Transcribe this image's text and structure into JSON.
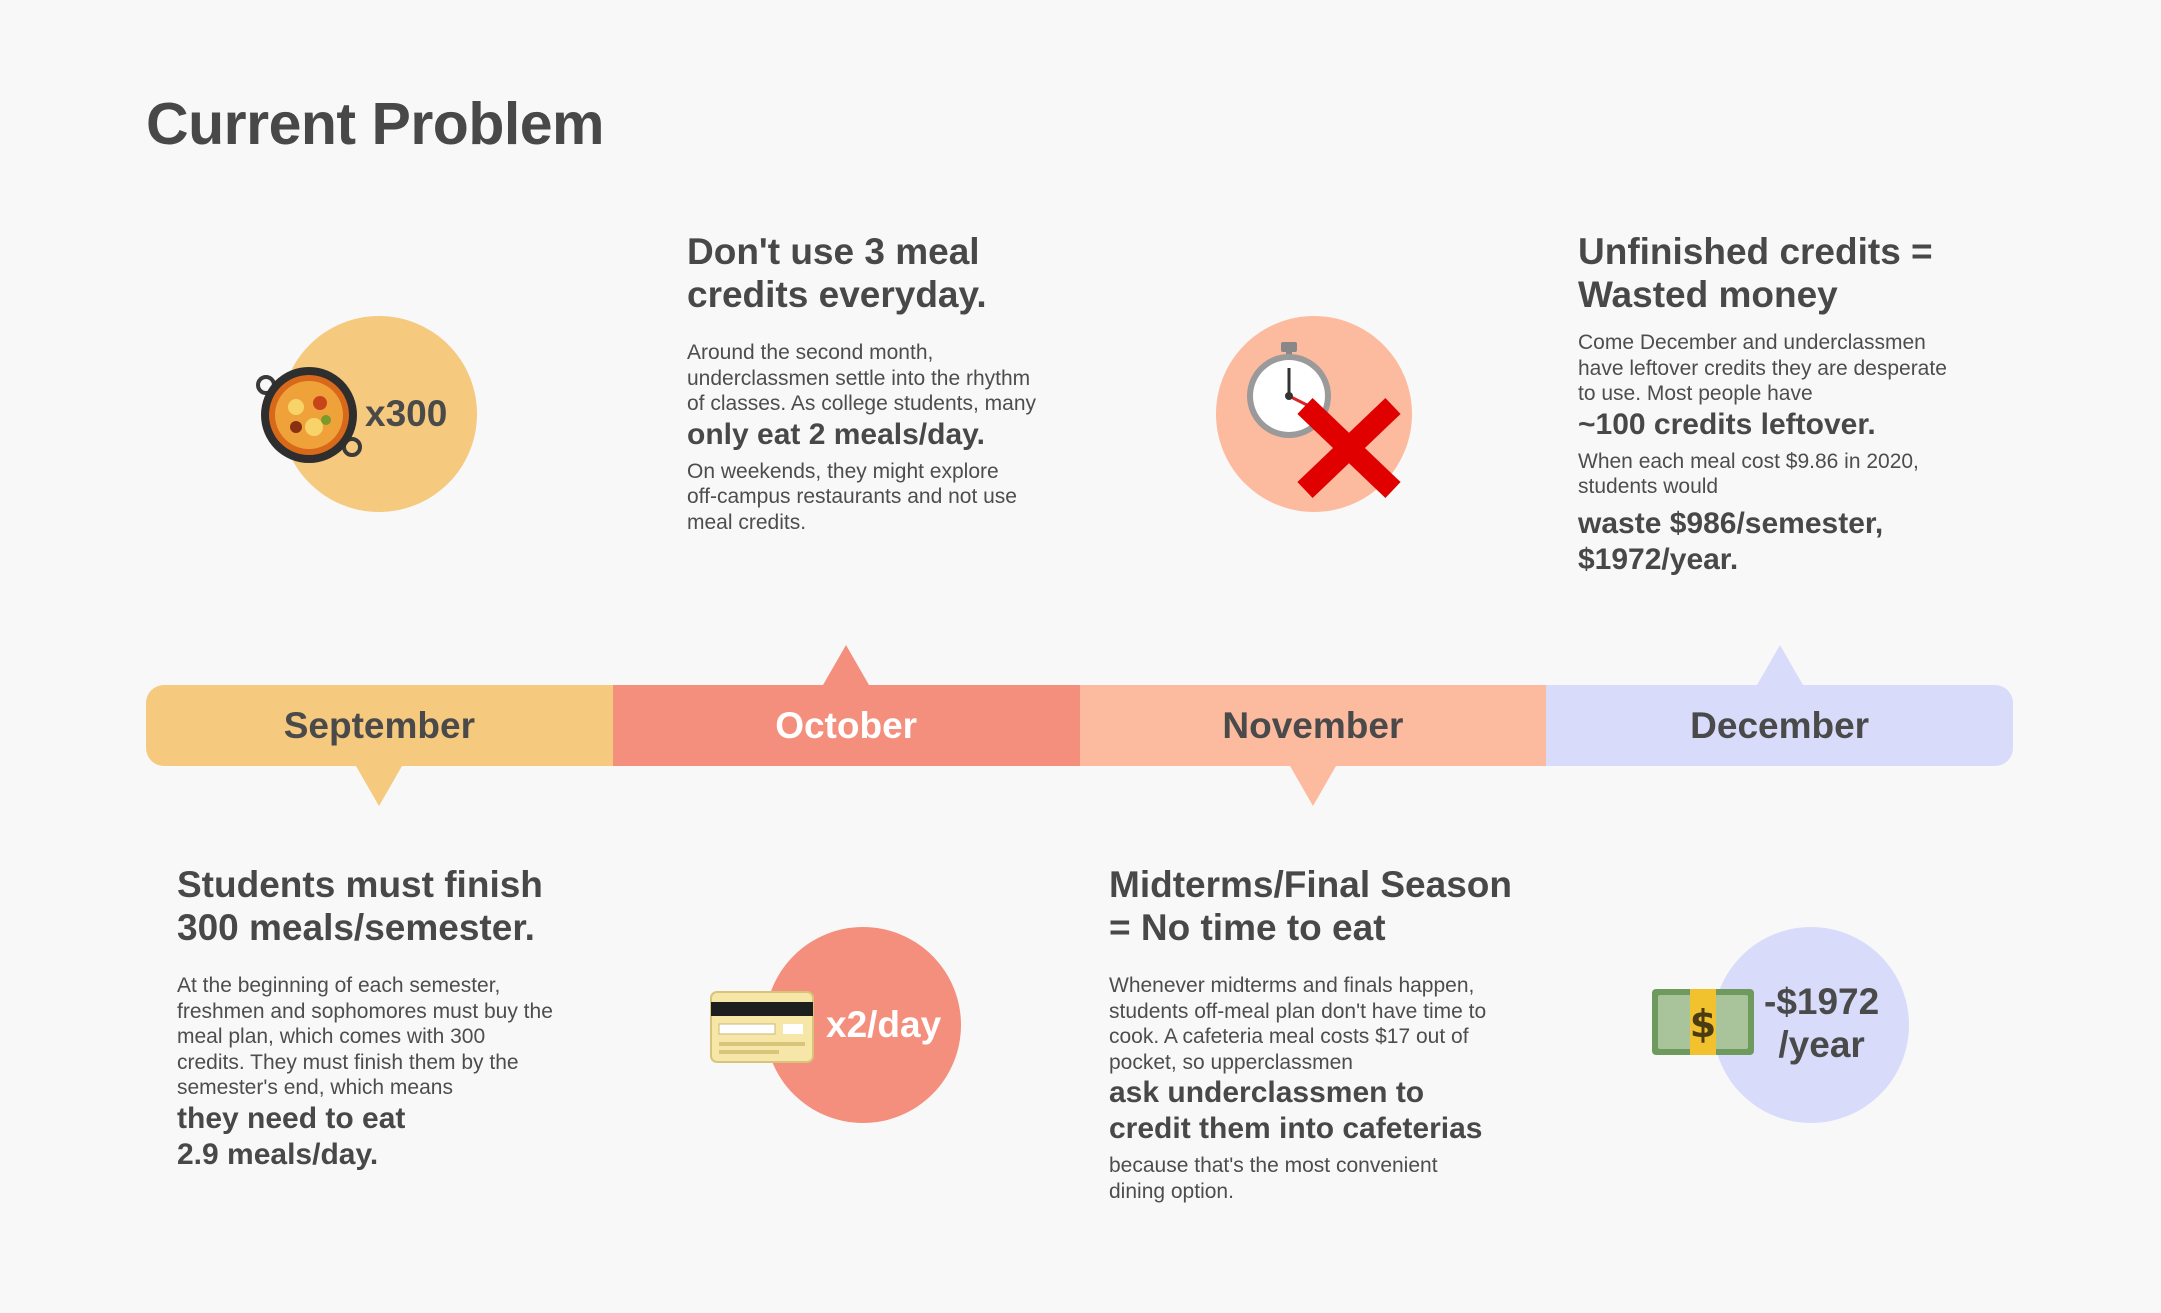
{
  "title": "Current Problem",
  "timeline": {
    "months": [
      "September",
      "October",
      "November",
      "December"
    ]
  },
  "colors": {
    "september": "#f5c97e",
    "october": "#f58f7d",
    "november": "#fcbb9f",
    "december": "#d8dcfa"
  },
  "september": {
    "badge": "x300",
    "icon": "paella-pan-icon",
    "heading_line1": "Students must finish",
    "heading_line2": "300 meals/semester.",
    "body": [
      "At the beginning of each semester,",
      "freshmen and sophomores must buy the",
      "meal plan, which comes with 300",
      "credits. They must finish them by the",
      "semester's end, which means"
    ],
    "emphasis": [
      "they need to eat",
      "2.9 meals/day."
    ]
  },
  "october": {
    "badge": "x2/day",
    "icon": "credit-card-icon",
    "heading_line1": "Don't use 3 meal",
    "heading_line2": "credits everyday.",
    "body": [
      "Around the second month,",
      "underclassmen settle into the rhythm",
      "of classes. As college students, many"
    ],
    "emphasis": "only eat 2 meals/day.",
    "body2": [
      "On weekends, they might explore",
      "off-campus restaurants and not use",
      "meal credits."
    ]
  },
  "november": {
    "icon": "stopwatch-cross-icon",
    "heading_line1": "Midterms/Final Season",
    "heading_line2": "= No time to eat",
    "body": [
      "Whenever midterms and finals happen,",
      "students off-meal plan don't have time to",
      "cook. A cafeteria meal costs $17 out of",
      "pocket, so upperclassmen"
    ],
    "emphasis": [
      "ask underclassmen to",
      "credit them into cafeterias"
    ],
    "body2": [
      "because that's the most convenient",
      "dining option."
    ]
  },
  "december": {
    "badge_line1": "-$1972",
    "badge_line2": "/year",
    "icon": "money-stack-icon",
    "heading_line1": "Unfinished credits =",
    "heading_line2": "Wasted money",
    "body": [
      "Come December and underclassmen",
      "have leftover credits they are desperate",
      "to use. Most people have"
    ],
    "emphasis": "~100 credits leftover.",
    "body2": [
      "When each meal cost $9.86 in 2020,",
      "students would"
    ],
    "emphasis2": [
      "waste $986/semester,",
      "$1972/year."
    ]
  }
}
